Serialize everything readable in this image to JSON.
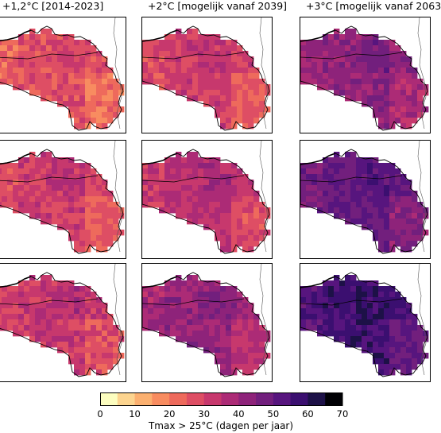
{
  "columns": [
    {
      "title": "+1,2°C [2014-2023]"
    },
    {
      "title": "+2°C [mogelijk vanaf 2039]"
    },
    {
      "title": "+3°C [mogelijk vanaf 2063"
    }
  ],
  "map_panels": [
    {
      "row": 1,
      "column": 1,
      "typical_value_days": 27
    },
    {
      "row": 1,
      "column": 2,
      "typical_value_days": 31
    },
    {
      "row": 1,
      "column": 3,
      "typical_value_days": 43
    },
    {
      "row": 2,
      "column": 1,
      "typical_value_days": 31
    },
    {
      "row": 2,
      "column": 2,
      "typical_value_days": 35
    },
    {
      "row": 2,
      "column": 3,
      "typical_value_days": 50
    },
    {
      "row": 3,
      "column": 1,
      "typical_value_days": 33
    },
    {
      "row": 3,
      "column": 2,
      "typical_value_days": 41
    },
    {
      "row": 3,
      "column": 3,
      "typical_value_days": 56
    }
  ],
  "colorbar": {
    "label": "Tmax > 25°C (dagen per jaar)",
    "min": 0,
    "max": 70,
    "step": 5,
    "ticks": [
      "0",
      "10",
      "20",
      "30",
      "40",
      "50",
      "60",
      "70"
    ],
    "colors": [
      "#fcfdbf",
      "#fcd48f",
      "#fbb070",
      "#f88c60",
      "#ee6a5c",
      "#de4e64",
      "#c7386d",
      "#ac2b76",
      "#8e237a",
      "#721f7d",
      "#57157e",
      "#3b0f70",
      "#1d1147",
      "#000004"
    ]
  }
}
